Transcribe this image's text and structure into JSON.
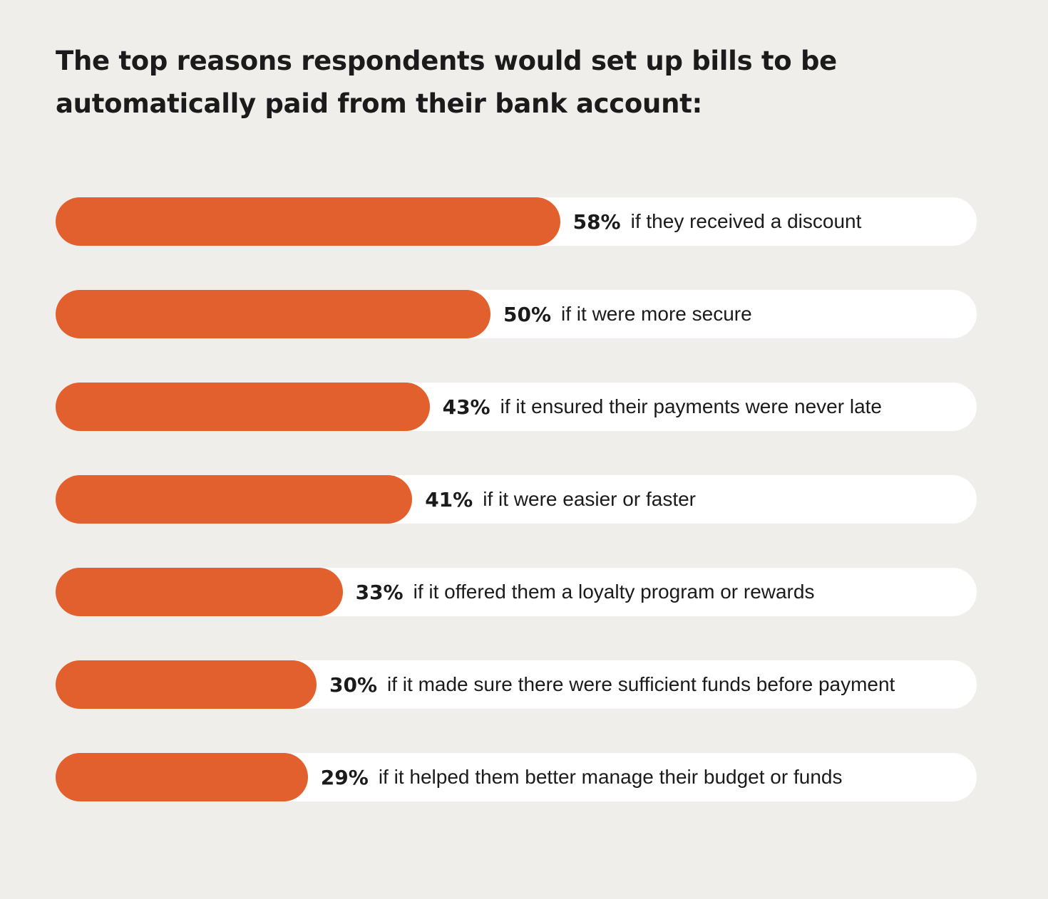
{
  "chart_data": {
    "type": "bar",
    "orientation": "horizontal",
    "title": "The top reasons respondents would set up bills to be automatically paid from their bank account:",
    "categories": [
      "if they received a discount",
      "if it were more secure",
      "if it ensured their payments were never late",
      "if it were easier or faster",
      "if it offered them a loyalty program or rewards",
      "if it made sure there were sufficient funds before payment",
      "if it helped them better manage their budget or funds"
    ],
    "values": [
      58,
      50,
      43,
      41,
      33,
      30,
      29
    ],
    "value_labels": [
      "58%",
      "50%",
      "43%",
      "41%",
      "33%",
      "30%",
      "29%"
    ],
    "unit": "%",
    "grid": false,
    "legend": "none",
    "colors": {
      "bar": "#e2602d",
      "track": "#ffffff",
      "background": "#f0eeeb",
      "text": "#1b1b1b"
    }
  }
}
